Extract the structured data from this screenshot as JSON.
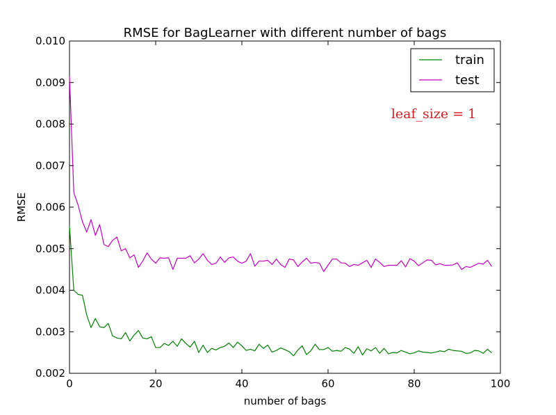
{
  "chart_data": {
    "type": "line",
    "title": "RMSE for BagLearner with different number of bags",
    "xlabel": "number of bags",
    "ylabel": "RMSE",
    "xlim": [
      0,
      100
    ],
    "ylim": [
      0.002,
      0.01
    ],
    "xticks": [
      0,
      20,
      40,
      60,
      80,
      100
    ],
    "yticks": [
      0.002,
      0.003,
      0.004,
      0.005,
      0.006,
      0.007,
      0.008,
      0.009,
      0.01
    ],
    "xtick_labels": [
      "0",
      "20",
      "40",
      "60",
      "80",
      "100"
    ],
    "ytick_labels": [
      "0.002",
      "0.003",
      "0.004",
      "0.005",
      "0.006",
      "0.007",
      "0.008",
      "0.009",
      "0.010"
    ],
    "grid": false,
    "legend_position": "top-right",
    "annotation": "leaf_size = 1",
    "x": [
      0,
      1,
      2,
      3,
      4,
      5,
      6,
      7,
      8,
      9,
      10,
      11,
      12,
      13,
      14,
      15,
      16,
      17,
      18,
      19,
      20,
      21,
      22,
      23,
      24,
      25,
      26,
      27,
      28,
      29,
      30,
      31,
      32,
      33,
      34,
      35,
      36,
      37,
      38,
      39,
      40,
      41,
      42,
      43,
      44,
      45,
      46,
      47,
      48,
      49,
      50,
      51,
      52,
      53,
      54,
      55,
      56,
      57,
      58,
      59,
      60,
      61,
      62,
      63,
      64,
      65,
      66,
      67,
      68,
      69,
      70,
      71,
      72,
      73,
      74,
      75,
      76,
      77,
      78,
      79,
      80,
      81,
      82,
      83,
      84,
      85,
      86,
      87,
      88,
      89,
      90,
      91,
      92,
      93,
      94,
      95,
      96,
      97,
      98
    ],
    "series": [
      {
        "name": "train",
        "color": "#008000",
        "values": [
          0.00555,
          0.004,
          0.0039,
          0.00388,
          0.0034,
          0.0031,
          0.00332,
          0.00312,
          0.0031,
          0.0032,
          0.0029,
          0.00285,
          0.00283,
          0.00298,
          0.00278,
          0.00292,
          0.00303,
          0.00285,
          0.00283,
          0.00288,
          0.00262,
          0.00262,
          0.00272,
          0.00267,
          0.00277,
          0.00265,
          0.00283,
          0.00272,
          0.00263,
          0.00277,
          0.0025,
          0.00268,
          0.0025,
          0.0026,
          0.00256,
          0.00262,
          0.00265,
          0.00273,
          0.00262,
          0.00275,
          0.00266,
          0.00255,
          0.00258,
          0.00254,
          0.0027,
          0.0026,
          0.00268,
          0.00251,
          0.00255,
          0.00261,
          0.00257,
          0.00252,
          0.00242,
          0.00256,
          0.00266,
          0.00245,
          0.00254,
          0.0027,
          0.00257,
          0.00257,
          0.00262,
          0.00253,
          0.00255,
          0.00253,
          0.00262,
          0.00258,
          0.00248,
          0.00264,
          0.00244,
          0.00259,
          0.00254,
          0.00262,
          0.00248,
          0.0026,
          0.00247,
          0.0025,
          0.00249,
          0.00255,
          0.00251,
          0.00247,
          0.00249,
          0.00254,
          0.00251,
          0.0025,
          0.00249,
          0.00251,
          0.00254,
          0.00252,
          0.00258,
          0.00255,
          0.00254,
          0.00253,
          0.00248,
          0.00249,
          0.00255,
          0.00254,
          0.00248,
          0.00258,
          0.00249
        ]
      },
      {
        "name": "test",
        "color": "#bf00bf",
        "values": [
          0.00915,
          0.00635,
          0.00605,
          0.00565,
          0.0054,
          0.0057,
          0.00532,
          0.00558,
          0.0051,
          0.00505,
          0.0052,
          0.00528,
          0.00495,
          0.005,
          0.00478,
          0.00485,
          0.00455,
          0.0047,
          0.0049,
          0.00475,
          0.00465,
          0.00478,
          0.00477,
          0.00478,
          0.0045,
          0.00477,
          0.00477,
          0.00477,
          0.00483,
          0.00466,
          0.00475,
          0.00488,
          0.00472,
          0.00462,
          0.00465,
          0.0048,
          0.00467,
          0.00478,
          0.0048,
          0.0047,
          0.00465,
          0.0047,
          0.00488,
          0.00458,
          0.0047,
          0.0047,
          0.00472,
          0.00462,
          0.00475,
          0.00462,
          0.00455,
          0.00475,
          0.00473,
          0.00457,
          0.00468,
          0.00477,
          0.00465,
          0.00467,
          0.00465,
          0.00445,
          0.0046,
          0.00475,
          0.00475,
          0.00466,
          0.00465,
          0.00457,
          0.00462,
          0.0046,
          0.00466,
          0.00472,
          0.00455,
          0.00475,
          0.00467,
          0.00457,
          0.0046,
          0.0046,
          0.0046,
          0.00471,
          0.00456,
          0.00476,
          0.0047,
          0.00459,
          0.00466,
          0.00473,
          0.00472,
          0.00461,
          0.00464,
          0.0046,
          0.0046,
          0.00461,
          0.00466,
          0.0045,
          0.00457,
          0.00455,
          0.0046,
          0.00465,
          0.00463,
          0.00472,
          0.00457
        ]
      }
    ]
  }
}
